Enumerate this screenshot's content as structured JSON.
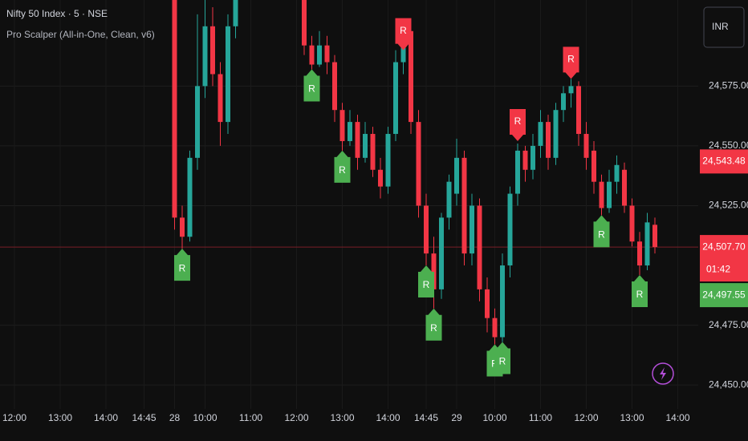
{
  "chart_data": {
    "type": "candlestick",
    "title": "Nifty 50 Index · 5 · NSE",
    "subtitle": "Pro Scalper (All-in-One, Clean, v6)",
    "currency": "INR",
    "up_color": "#26a69a",
    "down_color": "#f23645",
    "categories": [
      null,
      null,
      "12:00",
      null,
      null,
      null,
      null,
      null,
      "13:00",
      null,
      null,
      null,
      null,
      null,
      "14:00",
      null,
      null,
      null,
      null,
      "14:45",
      null,
      null,
      null,
      "28",
      null,
      null,
      null,
      "10:00",
      null,
      null,
      null,
      null,
      null,
      "11:00",
      null,
      null,
      null,
      null,
      null,
      "12:00",
      null,
      null,
      null,
      null,
      null,
      "13:00",
      null,
      null,
      null,
      null,
      null,
      "14:00",
      null,
      null,
      null,
      null,
      "14:45",
      null,
      null,
      null,
      "29",
      null,
      null,
      null,
      null,
      "10:00",
      null,
      null,
      null,
      null,
      null,
      "11:00",
      null,
      null,
      null,
      null,
      null,
      "12:00",
      null,
      null,
      null,
      null,
      null,
      "13:00",
      null,
      null,
      null,
      null,
      null,
      "14:00",
      null,
      null
    ],
    "open": [
      null,
      null,
      null,
      null,
      null,
      null,
      null,
      null,
      null,
      null,
      null,
      null,
      null,
      null,
      null,
      null,
      null,
      null,
      null,
      null,
      null,
      null,
      null,
      24612,
      24520,
      24512,
      24545,
      24575,
      24600,
      24580,
      24560,
      24600,
      24620,
      24630,
      24625,
      24632,
      24628,
      24635,
      24630,
      24626,
      24615,
      24592,
      24584,
      24592,
      24585,
      24565,
      24552,
      24560,
      24545,
      24555,
      24540,
      24533,
      24555,
      24585,
      24598,
      24560,
      24525,
      24505,
      24490,
      24520,
      24530,
      24545,
      24505,
      24525,
      24490,
      24478,
      24470,
      24500,
      24530,
      24548,
      24540,
      24550,
      24560,
      24545,
      24565,
      24572,
      24575,
      24555,
      24548,
      24535,
      24524,
      24535,
      24540,
      24525,
      24510,
      24500,
      24517,
      null,
      null,
      null,
      null,
      null
    ],
    "high": [
      null,
      null,
      null,
      null,
      null,
      null,
      null,
      null,
      null,
      null,
      null,
      null,
      null,
      null,
      null,
      null,
      null,
      null,
      null,
      null,
      null,
      null,
      null,
      24615,
      24525,
      24548,
      24605,
      24612,
      24608,
      24585,
      24605,
      24625,
      24635,
      24640,
      24635,
      24640,
      24638,
      24642,
      24638,
      24632,
      24620,
      24596,
      24598,
      24596,
      24588,
      24568,
      24565,
      24563,
      24560,
      24558,
      24545,
      24558,
      24590,
      24602,
      24600,
      24565,
      24530,
      24512,
      24522,
      24538,
      24553,
      24548,
      24530,
      24528,
      24495,
      24482,
      24505,
      24533,
      24551,
      24550,
      24555,
      24565,
      24563,
      24568,
      24575,
      24578,
      24577,
      24560,
      24552,
      24538,
      24540,
      24546,
      24543,
      24528,
      24514,
      24522,
      24520,
      null,
      null,
      null,
      null,
      null
    ],
    "low": [
      null,
      null,
      null,
      null,
      null,
      null,
      null,
      null,
      null,
      null,
      null,
      null,
      null,
      null,
      null,
      null,
      null,
      null,
      null,
      null,
      null,
      null,
      null,
      24515,
      24507,
      24510,
      24540,
      24570,
      24575,
      24550,
      24555,
      24595,
      24615,
      24620,
      24618,
      24625,
      24620,
      24625,
      24622,
      24612,
      24588,
      24582,
      24583,
      24580,
      24560,
      24548,
      24550,
      24540,
      24543,
      24537,
      24528,
      24530,
      24552,
      24580,
      24555,
      24520,
      24500,
      24482,
      24486,
      24515,
      24525,
      24500,
      24500,
      24485,
      24472,
      24467,
      24468,
      24495,
      24525,
      24535,
      24536,
      24545,
      24540,
      24542,
      24560,
      24566,
      24550,
      24540,
      24530,
      24521,
      24522,
      24530,
      24522,
      24508,
      24496,
      24498,
      24505,
      null,
      null,
      null,
      null,
      null
    ],
    "close": [
      null,
      null,
      null,
      null,
      null,
      null,
      null,
      null,
      null,
      null,
      null,
      null,
      null,
      null,
      null,
      null,
      null,
      null,
      null,
      null,
      null,
      null,
      null,
      24520,
      24512,
      24545,
      24575,
      24600,
      24580,
      24560,
      24600,
      24620,
      24630,
      24625,
      24632,
      24628,
      24635,
      24630,
      24626,
      24615,
      24592,
      24584,
      24592,
      24585,
      24565,
      24552,
      24560,
      24545,
      24555,
      24540,
      24533,
      24555,
      24585,
      24598,
      24560,
      24525,
      24505,
      24490,
      24520,
      24535,
      24545,
      24505,
      24525,
      24490,
      24478,
      24470,
      24500,
      24530,
      24548,
      24540,
      24550,
      24560,
      24545,
      24565,
      24572,
      24575,
      24555,
      24545,
      24535,
      24524,
      24535,
      24542,
      24525,
      24510,
      24500,
      24518,
      24507.7,
      null,
      null,
      null,
      null,
      null
    ],
    "signal_label": "R",
    "buy_color": "#4caf50",
    "sell_color": "#f23645",
    "buy_signals": [
      null,
      null,
      null,
      null,
      null,
      null,
      null,
      null,
      null,
      null,
      null,
      null,
      null,
      null,
      null,
      null,
      null,
      null,
      null,
      null,
      null,
      null,
      null,
      null,
      24507,
      null,
      null,
      null,
      null,
      null,
      null,
      null,
      null,
      null,
      null,
      null,
      null,
      null,
      null,
      null,
      null,
      24582,
      null,
      null,
      null,
      24548,
      null,
      null,
      null,
      null,
      null,
      null,
      null,
      null,
      null,
      null,
      24500,
      24482,
      null,
      null,
      null,
      null,
      null,
      null,
      null,
      24467,
      24468,
      null,
      null,
      null,
      null,
      null,
      null,
      null,
      null,
      null,
      null,
      null,
      null,
      24521,
      null,
      null,
      null,
      null,
      24496,
      null,
      null,
      null,
      null,
      null,
      null,
      null
    ],
    "sell_signals": [
      null,
      null,
      null,
      null,
      null,
      null,
      null,
      null,
      null,
      null,
      null,
      null,
      null,
      null,
      null,
      null,
      null,
      null,
      null,
      null,
      null,
      null,
      null,
      null,
      null,
      null,
      null,
      null,
      null,
      null,
      null,
      null,
      null,
      null,
      null,
      null,
      null,
      null,
      null,
      null,
      null,
      null,
      null,
      null,
      null,
      null,
      null,
      null,
      null,
      null,
      null,
      null,
      null,
      24590,
      null,
      null,
      null,
      null,
      null,
      null,
      null,
      null,
      null,
      null,
      null,
      null,
      null,
      null,
      24552,
      null,
      null,
      null,
      null,
      null,
      null,
      24578,
      null,
      null,
      null,
      null,
      null,
      null,
      null,
      null,
      null,
      null,
      null,
      null,
      null,
      null,
      null,
      null
    ],
    "ylim": [
      24440,
      24611
    ],
    "yticks": [
      {
        "value": 24450,
        "label": "24,450.00"
      },
      {
        "value": 24475,
        "label": "24,475.00"
      },
      {
        "value": 24525,
        "label": "24,525.00"
      },
      {
        "value": 24550,
        "label": "24,550.00"
      },
      {
        "value": 24575,
        "label": "24,575.00"
      }
    ],
    "grid": true,
    "price_labels": [
      {
        "value": 24543.48,
        "label": "24,543.48",
        "color": "#f23645"
      },
      {
        "value": 24507.7,
        "label": "24,507.70",
        "color": "#f23645"
      },
      {
        "value": 24497.55,
        "label": "24,497.55",
        "color": "#4caf50"
      }
    ],
    "countdown": "01:42"
  }
}
